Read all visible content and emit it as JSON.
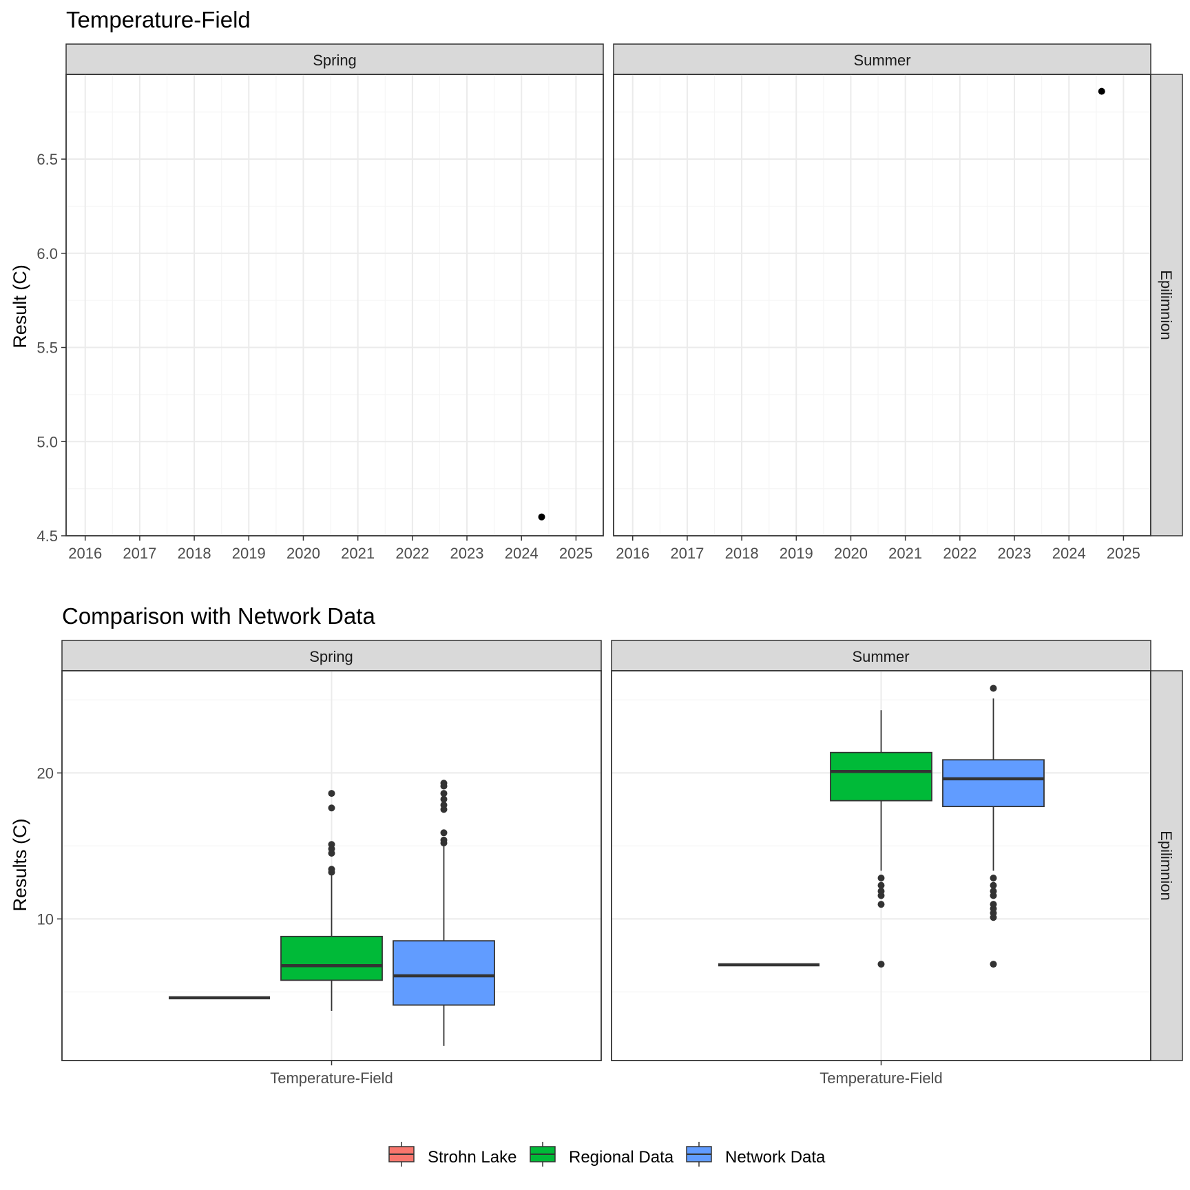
{
  "colors": {
    "strip_fill": "#d9d9d9",
    "grid_major": "#ebebeb",
    "grid_minor": "#f5f5f5",
    "panel_border": "#333333",
    "point": "#000000",
    "box_outline": "#333333",
    "tick_text": "#4d4d4d",
    "strohn": "#f8766d",
    "regional": "#00ba38",
    "network": "#619cff"
  },
  "chart_data": [
    {
      "type": "scatter",
      "title": "Temperature-Field",
      "ylabel": "Result (C)",
      "xlabel": "",
      "ylim": [
        4.5,
        6.95
      ],
      "xlim": [
        2015.65,
        2025.5
      ],
      "x_ticks": [
        2016,
        2017,
        2018,
        2019,
        2020,
        2021,
        2022,
        2023,
        2024,
        2025
      ],
      "x_tick_labels": [
        "2016",
        "2017",
        "2018",
        "2019",
        "2020",
        "2021",
        "2022",
        "2023",
        "2024",
        "2025"
      ],
      "y_ticks": [
        4.5,
        5.0,
        5.5,
        6.0,
        6.5
      ],
      "y_tick_labels": [
        "4.5",
        "5.0",
        "5.5",
        "6.0",
        "6.5"
      ],
      "grid": true,
      "row_strip": "Epilimnion",
      "panels": [
        {
          "facet": "Spring",
          "points": [
            {
              "x": 2024.37,
              "y": 4.6
            }
          ]
        },
        {
          "facet": "Summer",
          "points": [
            {
              "x": 2024.6,
              "y": 6.86
            }
          ]
        }
      ]
    },
    {
      "type": "box",
      "title": "Comparison with Network Data",
      "ylabel": "Results (C)",
      "xlabel": "",
      "categories": [
        "Temperature-Field"
      ],
      "ylim": [
        0.3,
        27.0
      ],
      "y_ticks": [
        10,
        20
      ],
      "y_tick_labels": [
        "10",
        "20"
      ],
      "grid": true,
      "row_strip": "Epilimnion",
      "legend": {
        "position": "bottom",
        "entries": [
          {
            "name": "Strohn Lake",
            "color_key": "strohn"
          },
          {
            "name": "Regional Data",
            "color_key": "regional"
          },
          {
            "name": "Network Data",
            "color_key": "network"
          }
        ]
      },
      "panels": [
        {
          "facet": "Spring",
          "series": [
            {
              "name": "Strohn Lake",
              "color_key": "strohn",
              "q1": 4.6,
              "median": 4.6,
              "q3": 4.6,
              "lower_whisker": 4.6,
              "upper_whisker": 4.6,
              "outliers": []
            },
            {
              "name": "Regional Data",
              "color_key": "regional",
              "q1": 5.8,
              "median": 6.8,
              "q3": 8.8,
              "lower_whisker": 3.7,
              "upper_whisker": 13.0,
              "outliers": [
                13.2,
                13.4,
                14.5,
                14.8,
                15.1,
                17.6,
                18.6
              ]
            },
            {
              "name": "Network Data",
              "color_key": "network",
              "q1": 4.1,
              "median": 6.1,
              "q3": 8.5,
              "lower_whisker": 1.3,
              "upper_whisker": 15.0,
              "outliers": [
                15.2,
                15.4,
                15.9,
                17.5,
                17.8,
                18.2,
                18.6,
                19.1,
                19.3
              ]
            }
          ]
        },
        {
          "facet": "Summer",
          "series": [
            {
              "name": "Strohn Lake",
              "color_key": "strohn",
              "q1": 6.86,
              "median": 6.86,
              "q3": 6.86,
              "lower_whisker": 6.86,
              "upper_whisker": 6.86,
              "outliers": []
            },
            {
              "name": "Regional Data",
              "color_key": "regional",
              "q1": 18.1,
              "median": 20.1,
              "q3": 21.4,
              "lower_whisker": 13.3,
              "upper_whisker": 24.3,
              "outliers": [
                6.9,
                11.0,
                11.6,
                11.9,
                12.3,
                12.8
              ]
            },
            {
              "name": "Network Data",
              "color_key": "network",
              "q1": 17.7,
              "median": 19.6,
              "q3": 20.9,
              "lower_whisker": 13.3,
              "upper_whisker": 25.1,
              "outliers": [
                6.9,
                10.1,
                10.4,
                10.7,
                11.0,
                11.6,
                11.9,
                12.3,
                12.8,
                25.8
              ]
            }
          ]
        }
      ]
    }
  ]
}
